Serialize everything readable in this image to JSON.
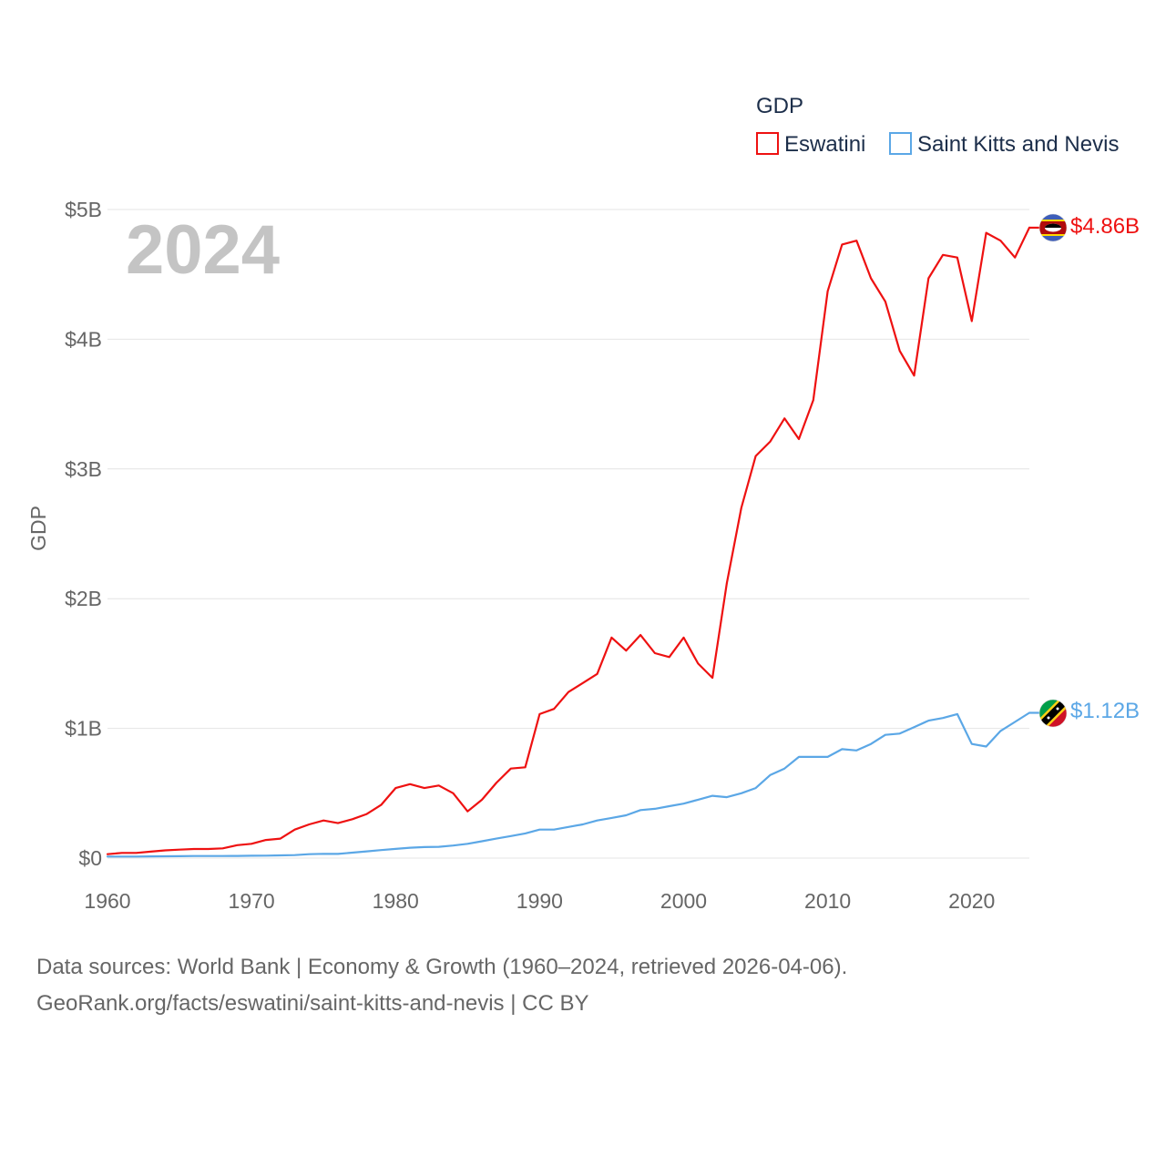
{
  "chart_data": {
    "type": "line",
    "title": "",
    "ylabel": "GDP",
    "xlabel": "",
    "legend_title": "GDP",
    "legend_position": "top-right",
    "year_label": "2024",
    "xlim": [
      1960,
      2024
    ],
    "ylim": [
      0,
      5
    ],
    "y_unit": "billion USD",
    "x_ticks": [
      1960,
      1970,
      1980,
      1990,
      2000,
      2010,
      2020
    ],
    "y_ticks": [
      {
        "value": 0,
        "label": "$0"
      },
      {
        "value": 1,
        "label": "$1B"
      },
      {
        "value": 2,
        "label": "$2B"
      },
      {
        "value": 3,
        "label": "$3B"
      },
      {
        "value": 4,
        "label": "$4B"
      },
      {
        "value": 5,
        "label": "$5B"
      }
    ],
    "x": [
      1960,
      1961,
      1962,
      1963,
      1964,
      1965,
      1966,
      1967,
      1968,
      1969,
      1970,
      1971,
      1972,
      1973,
      1974,
      1975,
      1976,
      1977,
      1978,
      1979,
      1980,
      1981,
      1982,
      1983,
      1984,
      1985,
      1986,
      1987,
      1988,
      1989,
      1990,
      1991,
      1992,
      1993,
      1994,
      1995,
      1996,
      1997,
      1998,
      1999,
      2000,
      2001,
      2002,
      2003,
      2004,
      2005,
      2006,
      2007,
      2008,
      2009,
      2010,
      2011,
      2012,
      2013,
      2014,
      2015,
      2016,
      2017,
      2018,
      2019,
      2020,
      2021,
      2022,
      2023,
      2024
    ],
    "series": [
      {
        "name": "Eswatini",
        "color": "#ee1111",
        "end_label": "$4.86B",
        "flag": "eswatini-flag",
        "values": [
          0.03,
          0.04,
          0.04,
          0.05,
          0.06,
          0.065,
          0.07,
          0.07,
          0.075,
          0.1,
          0.11,
          0.14,
          0.15,
          0.22,
          0.26,
          0.29,
          0.27,
          0.3,
          0.34,
          0.41,
          0.54,
          0.57,
          0.54,
          0.56,
          0.5,
          0.36,
          0.45,
          0.58,
          0.69,
          0.7,
          1.11,
          1.15,
          1.28,
          1.35,
          1.42,
          1.7,
          1.6,
          1.72,
          1.58,
          1.55,
          1.7,
          1.5,
          1.39,
          2.12,
          2.7,
          3.1,
          3.21,
          3.39,
          3.23,
          3.53,
          4.37,
          4.73,
          4.76,
          4.47,
          4.29,
          3.91,
          3.72,
          4.47,
          4.65,
          4.63,
          4.14,
          4.82,
          4.76,
          4.63,
          4.86
        ]
      },
      {
        "name": "Saint Kitts and Nevis",
        "color": "#5ba7e6",
        "end_label": "$1.12B",
        "flag": "saint-kitts-and-nevis-flag",
        "values": [
          0.012,
          0.012,
          0.012,
          0.013,
          0.014,
          0.015,
          0.016,
          0.016,
          0.016,
          0.017,
          0.018,
          0.019,
          0.021,
          0.023,
          0.03,
          0.033,
          0.032,
          0.042,
          0.052,
          0.062,
          0.071,
          0.08,
          0.085,
          0.087,
          0.097,
          0.11,
          0.13,
          0.15,
          0.17,
          0.19,
          0.22,
          0.22,
          0.24,
          0.26,
          0.29,
          0.31,
          0.33,
          0.37,
          0.38,
          0.4,
          0.42,
          0.45,
          0.48,
          0.47,
          0.5,
          0.54,
          0.64,
          0.69,
          0.78,
          0.78,
          0.78,
          0.84,
          0.83,
          0.88,
          0.95,
          0.96,
          1.01,
          1.06,
          1.08,
          1.11,
          0.88,
          0.86,
          0.98,
          1.05,
          1.12
        ]
      }
    ]
  },
  "footer": {
    "line1": "Data sources: World Bank | Economy & Growth (1960–2024, retrieved 2026-04-06).",
    "line2": "GeoRank.org/facts/eswatini/saint-kitts-and-nevis | CC BY"
  }
}
